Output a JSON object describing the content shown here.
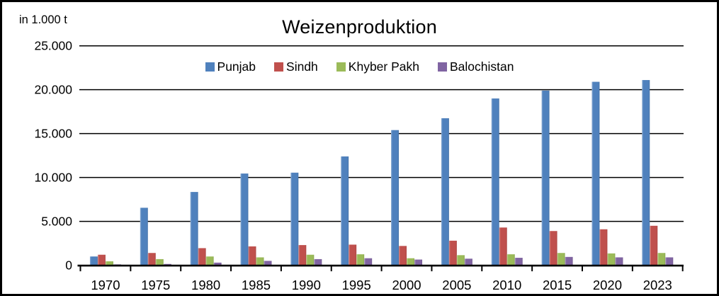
{
  "chart_data": {
    "type": "bar",
    "title": "Weizenproduktion",
    "unit_label": "in 1.000 t",
    "categories": [
      "1970",
      "1975",
      "1980",
      "1985",
      "1990",
      "1995",
      "2000",
      "2005",
      "2010",
      "2015",
      "2020",
      "2023"
    ],
    "series": [
      {
        "name": "Punjab",
        "color": "#4f81bd",
        "values": [
          1000,
          6550,
          8350,
          10450,
          10550,
          12400,
          15400,
          16750,
          19000,
          19900,
          20900,
          21100
        ]
      },
      {
        "name": "Sindh",
        "color": "#c0504d",
        "values": [
          1200,
          1400,
          1950,
          2150,
          2300,
          2350,
          2200,
          2800,
          4300,
          3900,
          4100,
          4500
        ]
      },
      {
        "name": "Khyber Pakh",
        "color": "#9bbb59",
        "values": [
          450,
          700,
          1000,
          900,
          1200,
          1250,
          800,
          1150,
          1250,
          1400,
          1350,
          1400
        ]
      },
      {
        "name": "Balochistan",
        "color": "#8064a2",
        "values": [
          100,
          150,
          300,
          500,
          700,
          800,
          650,
          750,
          850,
          950,
          900,
          900
        ]
      }
    ],
    "ylim": [
      0,
      25000
    ],
    "ytick_interval": 5000,
    "ytick_labels": [
      "0",
      "5.000",
      "10.000",
      "15.000",
      "20.000",
      "25.000"
    ],
    "grid": true,
    "gridline_color": "#000000",
    "axis_color": "#000000",
    "legend_position": "top-center",
    "background_color": "#ffffff",
    "border_color": "#000000"
  }
}
